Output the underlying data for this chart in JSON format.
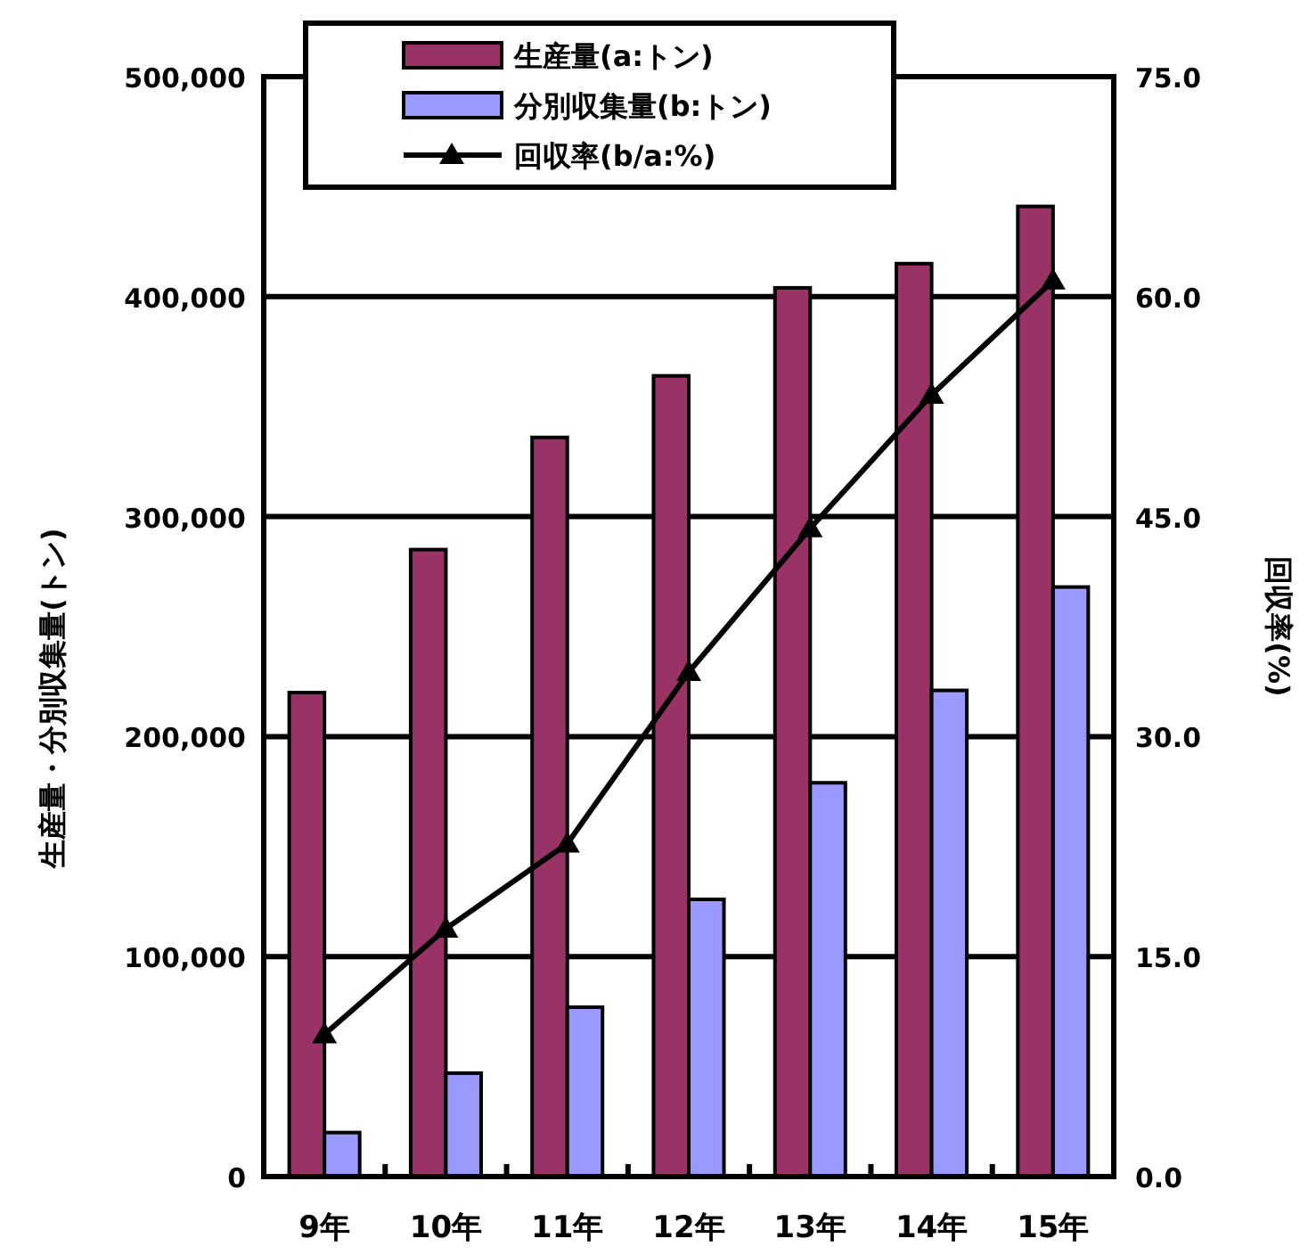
{
  "chart_data": {
    "type": "bar",
    "ylabel": "生産量・分別収集量(トン)",
    "y2label": "回収率(%)",
    "categories": [
      "9年",
      "10年",
      "11年",
      "12年",
      "13年",
      "14年",
      "15年"
    ],
    "series": [
      {
        "name": "生産量(a:トン)",
        "color": "#993366",
        "values": [
          220000,
          285000,
          336000,
          364000,
          404000,
          415000,
          441000
        ]
      },
      {
        "name": "分別収集量(b:トン)",
        "color": "#9999ff",
        "values": [
          20000,
          47000,
          77000,
          126000,
          179000,
          221000,
          268000
        ]
      },
      {
        "name": "回収率(b/a:%)",
        "type": "line",
        "axis": "y2",
        "color": "#000000",
        "marker": "triangle",
        "values": [
          9.7,
          16.9,
          22.7,
          34.4,
          44.2,
          53.3,
          61.1
        ]
      }
    ],
    "ylim": [
      0,
      500000
    ],
    "yticks": [
      0,
      {
        "value": 100000,
        "label": "100,000"
      },
      {
        "value": 200000,
        "label": "200,000"
      },
      {
        "value": 300000,
        "label": "300,000"
      },
      {
        "value": 400000,
        "label": "400,000"
      },
      {
        "value": 500000,
        "label": "500,000"
      }
    ],
    "y2lim": [
      0,
      75
    ],
    "y2ticks": [
      {
        "value": 0,
        "label": "0.0"
      },
      {
        "value": 15,
        "label": "15.0"
      },
      {
        "value": 30,
        "label": "30.0"
      },
      {
        "value": 45,
        "label": "45.0"
      },
      {
        "value": 60,
        "label": "60.0"
      },
      {
        "value": 75,
        "label": "75.0"
      }
    ],
    "grid": "y",
    "legend": "top"
  }
}
